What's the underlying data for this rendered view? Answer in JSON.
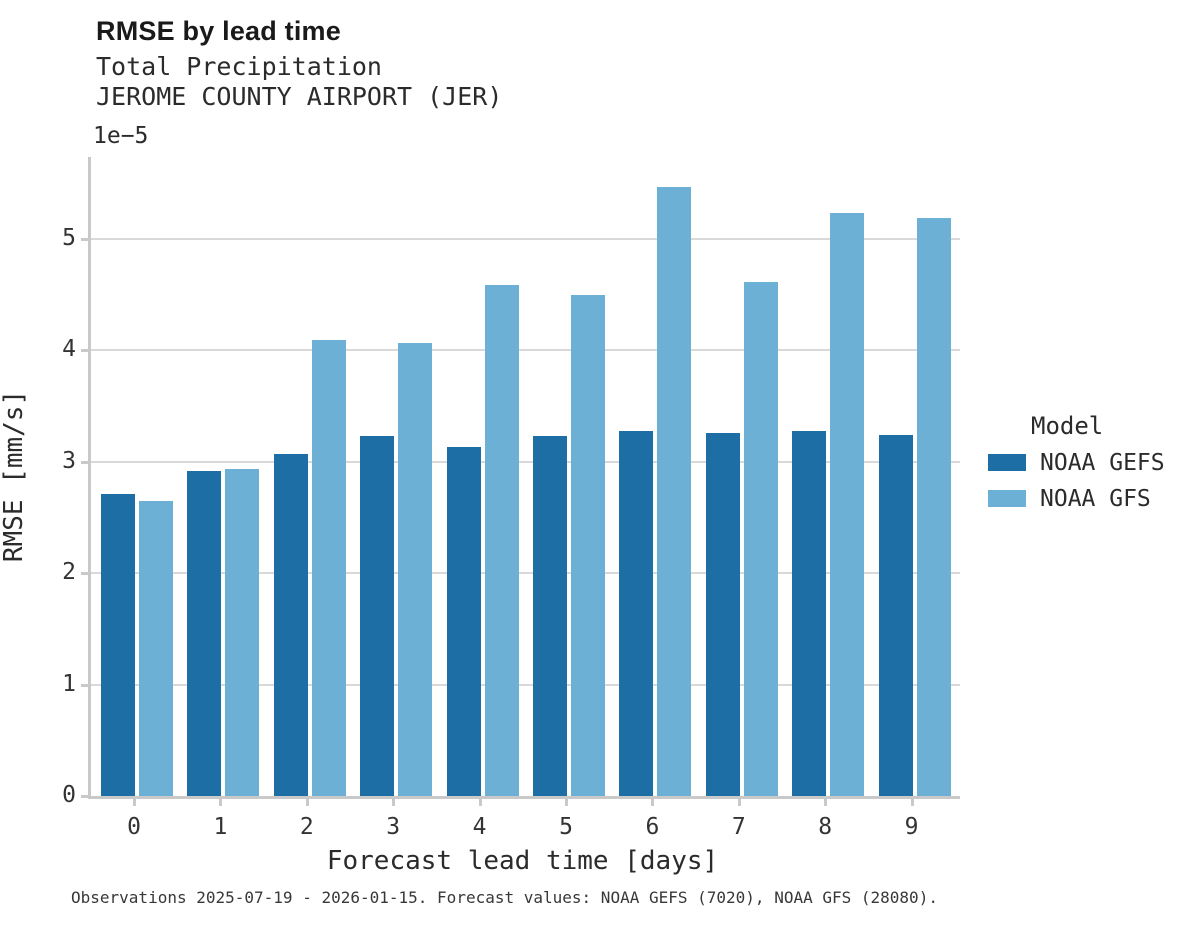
{
  "header": {
    "title": "RMSE by lead time",
    "subtitle": "Total Precipitation",
    "station": "JEROME COUNTY AIRPORT (JER)"
  },
  "chart_data": {
    "type": "bar",
    "title": "RMSE by lead time",
    "subtitle": "Total Precipitation",
    "station": "JEROME COUNTY AIRPORT (JER)",
    "xlabel": "Forecast lead time [days]",
    "ylabel": "RMSE [mm/s]",
    "y_offset_text": "1e−5",
    "value_scale": "1e-5 mm/s",
    "categories": [
      "0",
      "1",
      "2",
      "3",
      "4",
      "5",
      "6",
      "7",
      "8",
      "9"
    ],
    "yticks": [
      "0",
      "1",
      "2",
      "3",
      "4",
      "5"
    ],
    "ylim": [
      0,
      5.74
    ],
    "grid": true,
    "legend": {
      "title": "Model",
      "position": "right"
    },
    "series": [
      {
        "name": "NOAA GEFS",
        "color": "#1d6ea5",
        "values": [
          2.71,
          2.92,
          3.07,
          3.23,
          3.13,
          3.23,
          3.28,
          3.26,
          3.28,
          3.24
        ]
      },
      {
        "name": "NOAA GFS",
        "color": "#6cb0d6",
        "values": [
          2.65,
          2.94,
          4.09,
          4.07,
          4.59,
          4.5,
          5.47,
          4.61,
          5.23,
          5.19
        ]
      }
    ]
  },
  "caption": {
    "text": "Observations 2025-07-19 - 2026-01-15. Forecast values: NOAA GEFS (7020), NOAA GFS (28080)."
  },
  "colors": {
    "gefs_bar": "#1d6ea5",
    "gfs_bar": "#6cb0d6",
    "gridline": "#d9d9d9",
    "spine": "#c9c9c9",
    "text": "#2b2b2b"
  }
}
